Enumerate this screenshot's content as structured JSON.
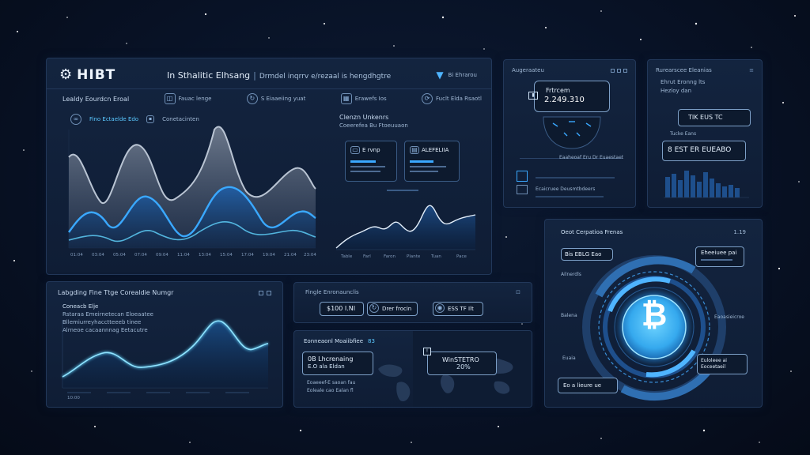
{
  "header": {
    "logo": "HIBT",
    "title": "In Sthalitic Elhsang",
    "subtitle": "Drmdel inqrrv e/rezaal is hengdhgtre",
    "right_label": "Bi Ehrarou"
  },
  "toolbar": {
    "item1": "Lealdy Eourdcn Eroal",
    "item2": "Fauac lenge",
    "item3": "S Eiaaeiing yuat",
    "item4": "Erawefs Ios",
    "item5": "Fuclt Elda Rsaotl"
  },
  "main_chart": {
    "legend1": "Fino Ectaelde Edo",
    "legend2": "Conetacinten",
    "xticks": [
      "01:04",
      "03:04",
      "05:04",
      "07:04",
      "09:04",
      "11:04",
      "13:04",
      "15:04",
      "17:04",
      "19:04",
      "21:04",
      "23:04"
    ]
  },
  "side_chart": {
    "title": "Clenzn Unkenrs",
    "subtitle": "Coeerefea Bu Ftoeuuaon",
    "card1": "E rvnp",
    "card2": "ALEFELIIA",
    "xticks": [
      "Table",
      "Farl",
      "Faron",
      "Plante",
      "Tuan",
      "Pace"
    ]
  },
  "top_right_1": {
    "header": "Augeraateu",
    "value_label": "Frtrcem",
    "value": "2.249.310",
    "footer1": "Eaaheoaf Eru Dr Euaestaet",
    "footer2": "Ecaicruee Deusmtbdeers"
  },
  "top_right_2": {
    "header": "Rurearscee Eleanias",
    "box1": "TIK EUS TC",
    "box2": "8 EST ER EUEABO",
    "rows": [
      "Ehrut Eronng lts",
      "Hezloy dan",
      "Tucke Eans"
    ]
  },
  "bottom_left": {
    "title": "Labgding Fine Ttge Corealdie Numgr",
    "lines": [
      "Coneacb Elje",
      "Rstaraa Emeirnetecan Eloeaatee",
      "Bllemiurreyhacctteeeb tinee",
      "Alrneoe cacaannnag Eetacutre"
    ],
    "xtick": "10:00"
  },
  "bottom_middle_top": {
    "title": "Fingle Enronaunclis",
    "chip1": "$100 I.NI",
    "chip2": "Drer frocin",
    "chip3": "ESS TF Ilt"
  },
  "bottom_middle_bottom": {
    "title": "Eonneaonl Moaiibfiee",
    "tag": "83",
    "line1": "0B Lhcrenaing",
    "line2": "E.O ala Eldan",
    "line3": "Eoaeeef-E saoan fau",
    "line4": "Eoleale cao Ealan fl",
    "map_value_label": "WinSTETRO",
    "map_value": "20%"
  },
  "crypto_panel": {
    "title": "Oeot Cerpatioa Frenas",
    "corner": "1.19",
    "chip_tl": "Bis EBLG Eao",
    "chip_tr": "Eheeiuee pai",
    "chip_br": "Euloleee ai Eoceetaeil",
    "chip_bl": "Eo a lieure ue",
    "label_l1": "Ailnerdls",
    "label_l2": "Balena",
    "label_l3": "Euaia",
    "label_r1": "Eaoasieicroe",
    "symbol": "₿"
  }
}
